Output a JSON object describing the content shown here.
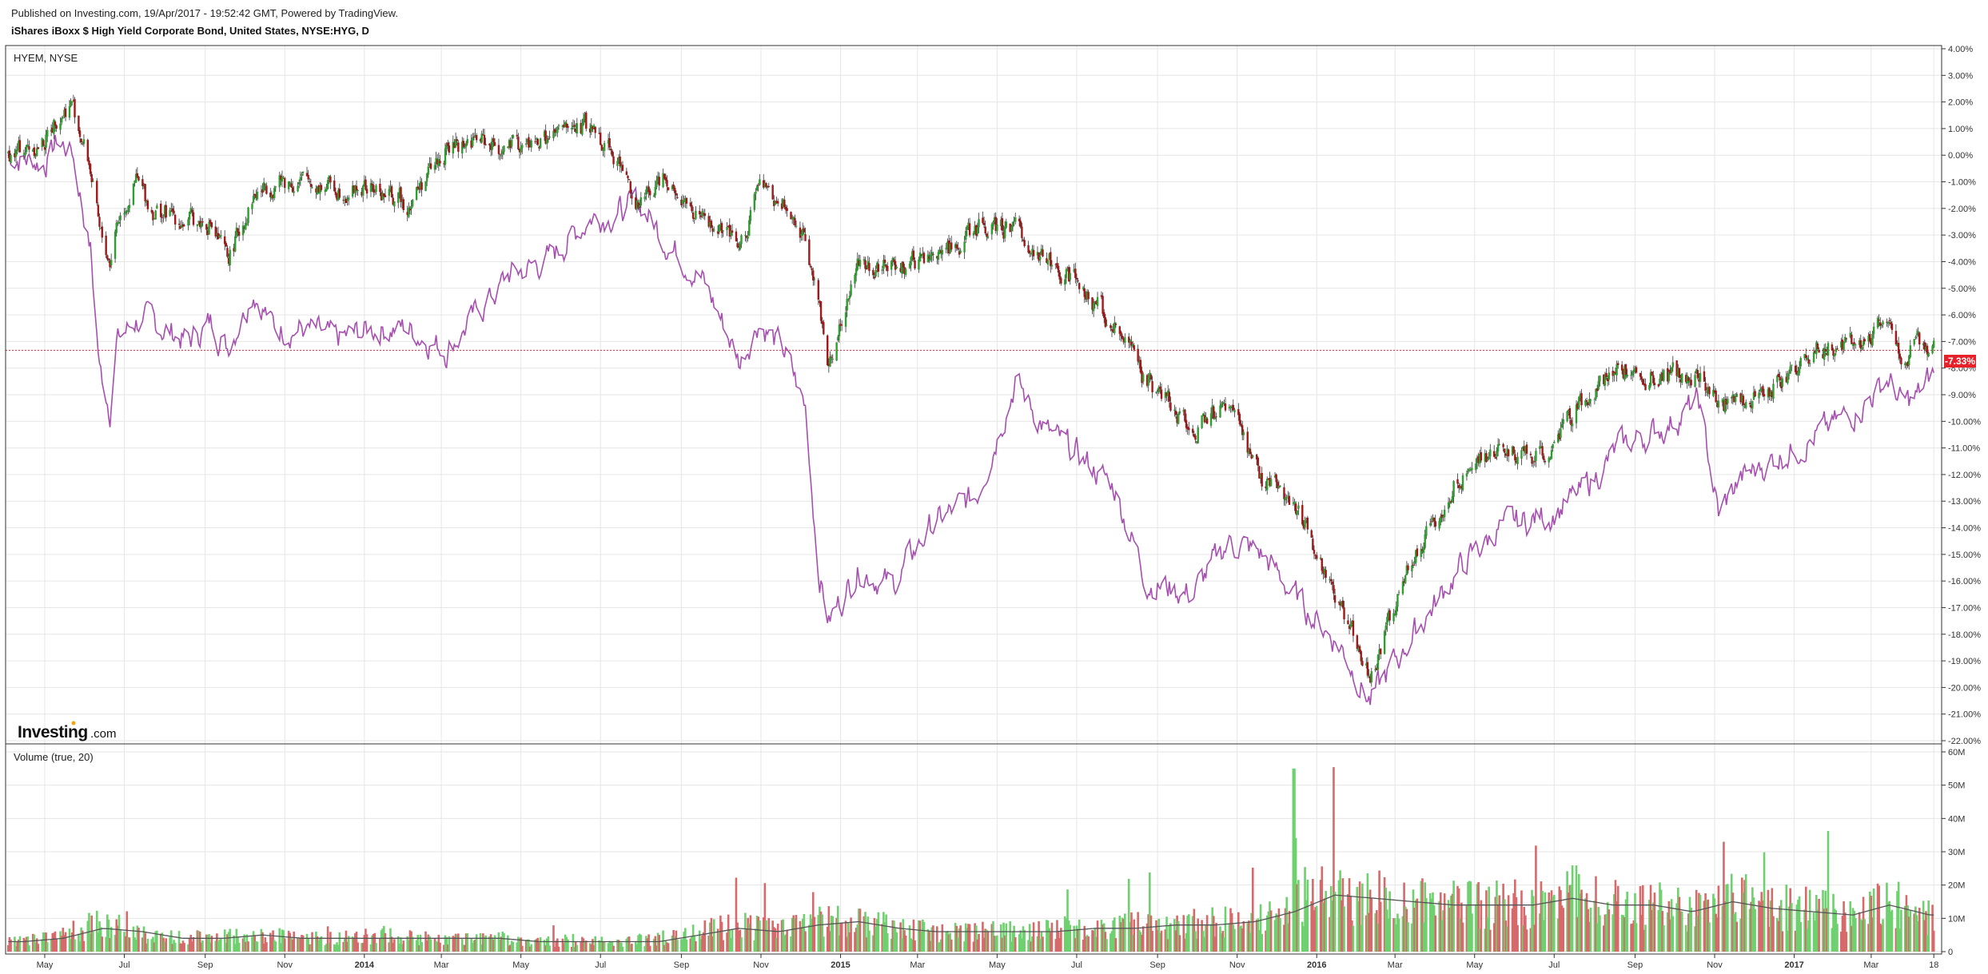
{
  "header": {
    "published": "Published on Investing.com, 19/Apr/2017 - 19:52:42 GMT, Powered by TradingView.",
    "title": "iShares iBoxx $ High Yield Corporate Bond, United States, NYSE:HYG, D"
  },
  "colors": {
    "up": "#2e9e2e",
    "down": "#a01818",
    "compare_line": "#a64fb0",
    "volume_up": "#6fd06f",
    "volume_down": "#d66a6a",
    "volume_ma": "#555555",
    "last_price_badge": "#e8202a",
    "grid": "#e6e6e6"
  },
  "chart_data": [
    {
      "type": "line",
      "panel": "price",
      "compare_label": "HYEM, NYSE",
      "y_unit": "%",
      "ylim": [
        -22,
        4
      ],
      "y_ticks": [
        "4.00%",
        "3.00%",
        "2.00%",
        "1.00%",
        "0.00%",
        "-1.00%",
        "-2.00%",
        "-3.00%",
        "-4.00%",
        "-5.00%",
        "-6.00%",
        "-7.00%",
        "-8.00%",
        "-9.00%",
        "-10.00%",
        "-11.00%",
        "-12.00%",
        "-13.00%",
        "-14.00%",
        "-15.00%",
        "-16.00%",
        "-17.00%",
        "-18.00%",
        "-19.00%",
        "-20.00%",
        "-21.00%",
        "-22.00%"
      ],
      "x_ticks": [
        "May",
        "Jul",
        "Sep",
        "Nov",
        "2014",
        "Mar",
        "May",
        "Jul",
        "Sep",
        "Nov",
        "2015",
        "Mar",
        "May",
        "Jul",
        "Sep",
        "Nov",
        "2016",
        "Mar",
        "May",
        "Jul",
        "Sep",
        "Nov",
        "2017",
        "Mar",
        "18"
      ],
      "x_ticks_bold": [
        "2014",
        "2015",
        "2016",
        "2017"
      ],
      "x": [
        "2013-04-01",
        "2013-05-01",
        "2013-05-10",
        "2013-05-22",
        "2013-06-05",
        "2013-06-12",
        "2013-06-20",
        "2013-06-25",
        "2013-07-10",
        "2013-07-22",
        "2013-08-20",
        "2013-09-05",
        "2013-09-18",
        "2013-10-08",
        "2013-10-24",
        "2013-11-15",
        "2013-12-10",
        "2014-01-08",
        "2014-02-03",
        "2014-03-05",
        "2014-03-28",
        "2014-04-22",
        "2014-05-20",
        "2014-06-10",
        "2014-06-24",
        "2014-07-10",
        "2014-07-31",
        "2014-08-20",
        "2014-09-15",
        "2014-09-30",
        "2014-10-16",
        "2014-10-30",
        "2014-11-20",
        "2014-12-05",
        "2014-12-15",
        "2014-12-23",
        "2015-01-15",
        "2015-02-10",
        "2015-03-10",
        "2015-04-15",
        "2015-05-15",
        "2015-06-10",
        "2015-07-08",
        "2015-07-30",
        "2015-08-24",
        "2015-09-28",
        "2015-10-26",
        "2015-11-20",
        "2015-12-14",
        "2016-01-20",
        "2016-02-11",
        "2016-03-15",
        "2016-04-20",
        "2016-05-20",
        "2016-06-27",
        "2016-07-20",
        "2016-08-20",
        "2016-09-20",
        "2016-10-20",
        "2016-11-04",
        "2016-11-20",
        "2016-12-20",
        "2017-01-20",
        "2017-02-20",
        "2017-03-14",
        "2017-03-25",
        "2017-04-05",
        "2017-04-18"
      ],
      "series": [
        {
          "name": "HYEM, NYSE",
          "values": [
            0.0,
            -0.3,
            0.5,
            0.2,
            -3.5,
            -8.0,
            -9.5,
            -7.0,
            -6.2,
            -6.3,
            -7.0,
            -6.3,
            -7.2,
            -5.0,
            -6.5,
            -6.5,
            -7.0,
            -6.5,
            -6.5,
            -7.3,
            -6.0,
            -4.5,
            -4.0,
            -3.0,
            -2.3,
            -2.2,
            -1.8,
            -3.2,
            -4.5,
            -6.0,
            -7.8,
            -6.2,
            -7.5,
            -9.5,
            -15.5,
            -17.5,
            -15.5,
            -16.2,
            -14.0,
            -12.8,
            -8.5,
            -10.5,
            -11.5,
            -12.5,
            -16.0,
            -16.5,
            -14.5,
            -15.0,
            -16.5,
            -18.5,
            -20.5,
            -18.0,
            -15.5,
            -14.0,
            -13.5,
            -12.8,
            -11.0,
            -10.3,
            -9.3,
            -13.5,
            -12.2,
            -11.3,
            -10.5,
            -9.5,
            -8.4,
            -9.4,
            -9.1,
            -8.2
          ]
        },
        {
          "name": "HYG",
          "style": "candles",
          "values": [
            0.0,
            0.5,
            1.5,
            2.0,
            -0.5,
            -3.0,
            -4.0,
            -2.5,
            -1.0,
            -2.0,
            -2.5,
            -2.5,
            -4.0,
            -1.5,
            -1.0,
            -1.0,
            -1.2,
            -1.3,
            -1.8,
            0.2,
            0.6,
            0.2,
            0.5,
            1.0,
            1.0,
            0.3,
            -2.0,
            -0.6,
            -2.5,
            -2.8,
            -3.6,
            -1.2,
            -2.0,
            -3.0,
            -5.5,
            -7.8,
            -4.0,
            -4.2,
            -4.0,
            -2.8,
            -2.8,
            -4.0,
            -5.0,
            -6.5,
            -8.5,
            -10.2,
            -9.5,
            -12.2,
            -13.0,
            -17.0,
            -19.5,
            -15.0,
            -12.0,
            -11.2,
            -11.3,
            -9.3,
            -8.0,
            -8.4,
            -8.1,
            -9.3,
            -9.5,
            -8.5,
            -7.3,
            -7.0,
            -6.2,
            -7.8,
            -7.1,
            -7.33
          ]
        }
      ],
      "last_value_label": "-7.33%"
    },
    {
      "type": "bar",
      "panel": "volume",
      "title": "Volume (true, 20)",
      "ylim": [
        0,
        60
      ],
      "y_unit": "M",
      "y_ticks": [
        "60M",
        "50M",
        "40M",
        "30M",
        "20M",
        "10M",
        "0"
      ],
      "x": [
        "2013-04",
        "2013-05",
        "2013-06",
        "2013-07",
        "2013-08",
        "2013-09",
        "2013-10",
        "2013-11",
        "2013-12",
        "2014-01",
        "2014-02",
        "2014-03",
        "2014-04",
        "2014-05",
        "2014-06",
        "2014-07",
        "2014-08",
        "2014-09",
        "2014-10",
        "2014-11",
        "2014-12",
        "2015-01",
        "2015-02",
        "2015-03",
        "2015-04",
        "2015-05",
        "2015-06",
        "2015-07",
        "2015-08",
        "2015-09",
        "2015-10",
        "2015-11",
        "2015-12",
        "2016-01",
        "2016-02",
        "2016-03",
        "2016-04",
        "2016-05",
        "2016-06",
        "2016-07",
        "2016-08",
        "2016-09",
        "2016-10",
        "2016-11",
        "2016-12",
        "2017-01",
        "2017-02",
        "2017-03",
        "2017-04"
      ],
      "series": [
        {
          "name": "volume",
          "values": [
            3,
            5,
            9,
            5,
            4,
            5,
            5,
            4,
            4,
            5,
            4,
            4,
            4,
            3,
            3,
            3,
            4,
            6,
            8,
            6,
            10,
            9,
            7,
            6,
            6,
            6,
            7,
            7,
            8,
            8,
            9,
            9,
            16,
            18,
            16,
            15,
            14,
            14,
            14,
            17,
            14,
            14,
            12,
            17,
            13,
            13,
            11,
            15,
            10
          ]
        },
        {
          "name": "ma",
          "style": "line",
          "values": [
            3,
            4,
            7,
            6,
            4,
            4,
            5,
            4,
            4,
            4,
            4,
            4,
            4,
            3,
            3,
            3,
            3,
            5,
            7,
            6,
            8,
            9,
            7,
            6,
            6,
            6,
            6,
            7,
            7,
            8,
            8,
            9,
            12,
            17,
            16,
            15,
            14,
            14,
            14,
            16,
            14,
            14,
            12,
            15,
            13,
            12,
            11,
            14,
            11
          ]
        }
      ]
    }
  ]
}
